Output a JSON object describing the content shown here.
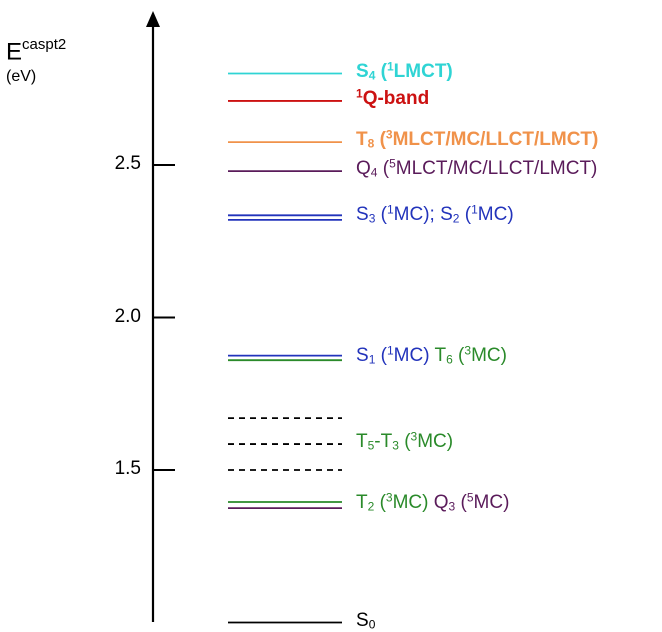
{
  "axis": {
    "title_main": "E",
    "title_sup": "caspt2",
    "unit": "(eV)",
    "ticks": [
      {
        "value": 2.5,
        "label": "2.5"
      },
      {
        "value": 2.0,
        "label": "2.0"
      },
      {
        "value": 1.5,
        "label": "1.5"
      }
    ]
  },
  "levels": [
    {
      "energy": 2.8,
      "color": "#2fd4d4",
      "style": "solid"
    },
    {
      "energy": 2.71,
      "color": "#cc1111",
      "style": "solid"
    },
    {
      "energy": 2.575,
      "color": "#f0924a",
      "style": "solid"
    },
    {
      "energy": 2.48,
      "color": "#5a1b5a",
      "style": "solid"
    },
    {
      "energy": 2.335,
      "color": "#2233bb",
      "style": "solid"
    },
    {
      "energy": 2.32,
      "color": "#2233bb",
      "style": "solid"
    },
    {
      "energy": 1.875,
      "color": "#2233bb",
      "style": "solid"
    },
    {
      "energy": 1.86,
      "color": "#2a8a2a",
      "style": "solid"
    },
    {
      "energy": 1.67,
      "color": "#000000",
      "style": "dashed"
    },
    {
      "energy": 1.585,
      "color": "#000000",
      "style": "dashed"
    },
    {
      "energy": 1.5,
      "color": "#000000",
      "style": "dashed"
    },
    {
      "energy": 1.395,
      "color": "#2a8a2a",
      "style": "solid"
    },
    {
      "energy": 1.375,
      "color": "#5a1b5a",
      "style": "solid"
    },
    {
      "energy": 1.0,
      "color": "#000000",
      "style": "solid"
    }
  ],
  "labels": [
    {
      "energy": 2.8,
      "bold": true,
      "parts": [
        {
          "t": "S",
          "c": "#2fd4d4"
        },
        {
          "sub": "4",
          "c": "#2fd4d4"
        },
        {
          "t": " (",
          "c": "#2fd4d4"
        },
        {
          "sup": "1",
          "c": "#2fd4d4"
        },
        {
          "t": "LMCT)",
          "c": "#2fd4d4"
        }
      ]
    },
    {
      "energy": 2.71,
      "bold": true,
      "parts": [
        {
          "sup": "1",
          "c": "#cc1111"
        },
        {
          "t": "Q-band",
          "c": "#cc1111"
        }
      ]
    },
    {
      "energy": 2.575,
      "bold": true,
      "parts": [
        {
          "t": "T",
          "c": "#f0924a"
        },
        {
          "sub": "8",
          "c": "#f0924a"
        },
        {
          "t": " (",
          "c": "#f0924a"
        },
        {
          "sup": "3",
          "c": "#f0924a"
        },
        {
          "t": "MLCT/MC/LLCT/LMCT)",
          "c": "#f0924a"
        }
      ]
    },
    {
      "energy": 2.48,
      "bold": false,
      "parts": [
        {
          "t": "Q",
          "c": "#5a1b5a"
        },
        {
          "sub": "4",
          "c": "#5a1b5a"
        },
        {
          "t": " (",
          "c": "#5a1b5a"
        },
        {
          "sup": "5",
          "c": "#5a1b5a"
        },
        {
          "t": "MLCT/MC/LLCT/LMCT)",
          "c": "#5a1b5a"
        }
      ]
    },
    {
      "energy": 2.33,
      "bold": false,
      "parts": [
        {
          "t": "S",
          "c": "#2233bb"
        },
        {
          "sub": "3",
          "c": "#2233bb"
        },
        {
          "t": " (",
          "c": "#2233bb"
        },
        {
          "sup": "1",
          "c": "#2233bb"
        },
        {
          "t": "MC); S",
          "c": "#2233bb"
        },
        {
          "sub": "2",
          "c": "#2233bb"
        },
        {
          "t": " (",
          "c": "#2233bb"
        },
        {
          "sup": "1",
          "c": "#2233bb"
        },
        {
          "t": "MC)",
          "c": "#2233bb"
        }
      ]
    },
    {
      "energy": 1.867,
      "bold": false,
      "parts": [
        {
          "t": "S",
          "c": "#2233bb"
        },
        {
          "sub": "1",
          "c": "#2233bb"
        },
        {
          "t": " (",
          "c": "#2233bb"
        },
        {
          "sup": "1",
          "c": "#2233bb"
        },
        {
          "t": "MC) ",
          "c": "#2233bb"
        },
        {
          "t": "T",
          "c": "#2a8a2a"
        },
        {
          "sub": "6",
          "c": "#2a8a2a"
        },
        {
          "t": " (",
          "c": "#2a8a2a"
        },
        {
          "sup": "3",
          "c": "#2a8a2a"
        },
        {
          "t": "MC)",
          "c": "#2a8a2a"
        }
      ]
    },
    {
      "energy": 1.585,
      "bold": false,
      "parts": [
        {
          "t": "T",
          "c": "#2a8a2a"
        },
        {
          "sub": "5",
          "c": "#2a8a2a"
        },
        {
          "t": "-T",
          "c": "#2a8a2a"
        },
        {
          "sub": "3",
          "c": "#2a8a2a"
        },
        {
          "t": " (",
          "c": "#2a8a2a"
        },
        {
          "sup": "3",
          "c": "#2a8a2a"
        },
        {
          "t": "MC)",
          "c": "#2a8a2a"
        }
      ]
    },
    {
      "energy": 1.385,
      "bold": false,
      "parts": [
        {
          "t": "T",
          "c": "#2a8a2a"
        },
        {
          "sub": "2",
          "c": "#2a8a2a"
        },
        {
          "t": " (",
          "c": "#2a8a2a"
        },
        {
          "sup": "3",
          "c": "#2a8a2a"
        },
        {
          "t": "MC) ",
          "c": "#2a8a2a"
        },
        {
          "t": "Q",
          "c": "#5a1b5a"
        },
        {
          "sub": "3",
          "c": "#5a1b5a"
        },
        {
          "t": " (",
          "c": "#5a1b5a"
        },
        {
          "sup": "5",
          "c": "#5a1b5a"
        },
        {
          "t": "MC)",
          "c": "#5a1b5a"
        }
      ]
    },
    {
      "energy": 1.0,
      "bold": false,
      "parts": [
        {
          "t": "S",
          "c": "#000000"
        },
        {
          "sub": "0",
          "c": "#000000"
        }
      ]
    }
  ]
}
